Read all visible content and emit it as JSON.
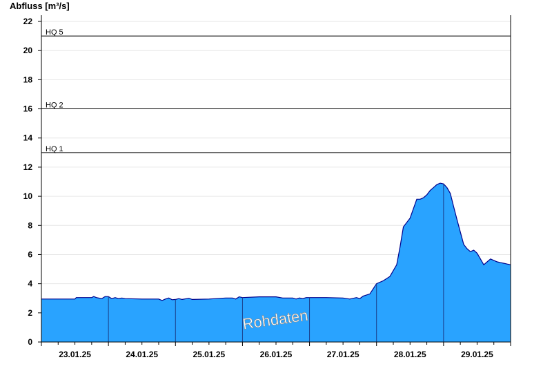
{
  "chart_data": {
    "type": "area",
    "ylabel": "Abfluss [m³/s]",
    "xlabel": "",
    "ylim": [
      0,
      23
    ],
    "yticks": [
      0,
      2,
      4,
      6,
      8,
      10,
      12,
      14,
      16,
      18,
      20,
      22
    ],
    "xlim": [
      0,
      7
    ],
    "day_boundaries": [
      1,
      2,
      3,
      4,
      5,
      6
    ],
    "xtick_labels": [
      "23.01.25",
      "24.01.25",
      "25.01.25",
      "26.01.25",
      "27.01.25",
      "28.01.25",
      "29.01.25"
    ],
    "grid": true,
    "watermark": "Rohdaten",
    "colors": {
      "fill": "#29A3FF",
      "line": "#00008B",
      "threshold": "#000000",
      "grid": "#e6e6e6"
    },
    "thresholds": [
      {
        "name": "HQ 5",
        "value": 21.0
      },
      {
        "name": "HQ 2",
        "value": 16.0
      },
      {
        "name": "HQ 1",
        "value": 13.0
      }
    ],
    "series": [
      {
        "values": [
          [
            0.0,
            2.95
          ],
          [
            0.25,
            2.95
          ],
          [
            0.5,
            2.95
          ],
          [
            0.52,
            3.05
          ],
          [
            0.75,
            3.05
          ],
          [
            0.78,
            3.12
          ],
          [
            0.82,
            3.05
          ],
          [
            0.9,
            2.98
          ],
          [
            0.95,
            3.12
          ],
          [
            1.0,
            3.12
          ],
          [
            1.05,
            2.98
          ],
          [
            1.1,
            3.05
          ],
          [
            1.15,
            2.98
          ],
          [
            1.2,
            3.02
          ],
          [
            1.25,
            2.98
          ],
          [
            1.5,
            2.95
          ],
          [
            1.75,
            2.95
          ],
          [
            1.8,
            2.85
          ],
          [
            1.85,
            2.95
          ],
          [
            1.9,
            3.02
          ],
          [
            1.95,
            2.9
          ],
          [
            2.0,
            2.92
          ],
          [
            2.05,
            2.98
          ],
          [
            2.1,
            2.92
          ],
          [
            2.2,
            3.0
          ],
          [
            2.25,
            2.92
          ],
          [
            2.5,
            2.95
          ],
          [
            2.75,
            3.02
          ],
          [
            2.85,
            3.02
          ],
          [
            2.9,
            2.95
          ],
          [
            2.95,
            3.1
          ],
          [
            3.0,
            3.05
          ],
          [
            3.25,
            3.1
          ],
          [
            3.5,
            3.1
          ],
          [
            3.6,
            3.02
          ],
          [
            3.75,
            3.02
          ],
          [
            3.8,
            2.95
          ],
          [
            3.85,
            3.02
          ],
          [
            3.9,
            2.98
          ],
          [
            3.95,
            3.05
          ],
          [
            4.0,
            3.05
          ],
          [
            4.1,
            3.05
          ],
          [
            4.25,
            3.05
          ],
          [
            4.5,
            3.02
          ],
          [
            4.6,
            2.95
          ],
          [
            4.7,
            3.05
          ],
          [
            4.75,
            2.98
          ],
          [
            4.8,
            3.15
          ],
          [
            4.9,
            3.3
          ],
          [
            5.0,
            4.0
          ],
          [
            5.1,
            4.2
          ],
          [
            5.2,
            4.5
          ],
          [
            5.3,
            5.3
          ],
          [
            5.35,
            6.5
          ],
          [
            5.4,
            7.9
          ],
          [
            5.5,
            8.5
          ],
          [
            5.6,
            9.8
          ],
          [
            5.65,
            9.8
          ],
          [
            5.7,
            9.9
          ],
          [
            5.75,
            10.1
          ],
          [
            5.8,
            10.4
          ],
          [
            5.85,
            10.6
          ],
          [
            5.9,
            10.8
          ],
          [
            5.95,
            10.9
          ],
          [
            6.0,
            10.85
          ],
          [
            6.05,
            10.6
          ],
          [
            6.1,
            10.2
          ],
          [
            6.15,
            9.3
          ],
          [
            6.2,
            8.4
          ],
          [
            6.3,
            6.7
          ],
          [
            6.35,
            6.4
          ],
          [
            6.4,
            6.2
          ],
          [
            6.45,
            6.3
          ],
          [
            6.5,
            6.1
          ],
          [
            6.55,
            5.7
          ],
          [
            6.6,
            5.3
          ],
          [
            6.65,
            5.5
          ],
          [
            6.7,
            5.7
          ],
          [
            6.75,
            5.6
          ],
          [
            6.8,
            5.5
          ],
          [
            6.85,
            5.45
          ],
          [
            6.9,
            5.4
          ],
          [
            6.95,
            5.35
          ],
          [
            7.0,
            5.3
          ]
        ]
      }
    ]
  }
}
